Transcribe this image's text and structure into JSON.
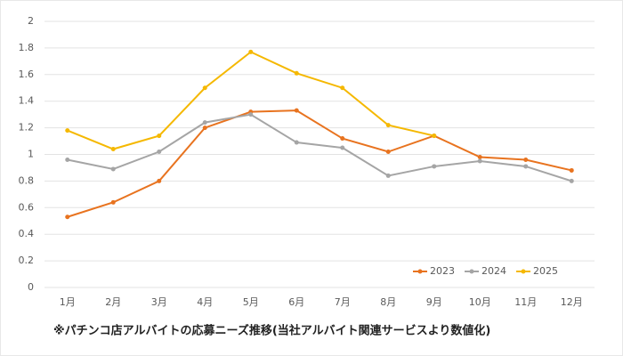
{
  "chart_data": {
    "type": "line",
    "caption": "※パチンコ店アルバイトの応募ニーズ推移(当社アルバイト関連サービスより数値化)",
    "categories": [
      "1月",
      "2月",
      "3月",
      "4月",
      "5月",
      "6月",
      "7月",
      "8月",
      "9月",
      "10月",
      "11月",
      "12月"
    ],
    "series": [
      {
        "name": "2023",
        "color": "#e8731f",
        "values": [
          0.53,
          0.64,
          0.8,
          1.2,
          1.32,
          1.33,
          1.12,
          1.02,
          1.14,
          0.98,
          0.96,
          0.88
        ]
      },
      {
        "name": "2024",
        "color": "#a5a5a5",
        "values": [
          0.96,
          0.89,
          1.02,
          1.24,
          1.3,
          1.09,
          1.05,
          0.84,
          0.91,
          0.95,
          0.91,
          0.8
        ]
      },
      {
        "name": "2025",
        "color": "#f5b800",
        "values": [
          1.18,
          1.04,
          1.14,
          1.5,
          1.77,
          1.61,
          1.5,
          1.22,
          1.14,
          null,
          null,
          null
        ]
      }
    ],
    "ylim": [
      0,
      2
    ],
    "yticks": [
      0,
      0.2,
      0.4,
      0.6,
      0.8,
      1,
      1.2,
      1.4,
      1.6,
      1.8,
      2
    ],
    "grid": true,
    "legend": "lower right"
  }
}
